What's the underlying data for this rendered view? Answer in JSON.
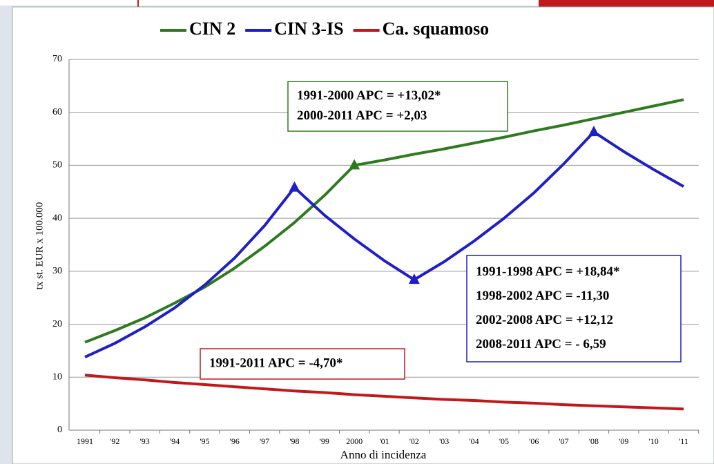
{
  "chart_data": {
    "type": "line",
    "y_label": "tx st. EUR x 100.000",
    "x_label": "Anno di incidenza",
    "categories": [
      "1991",
      "'92",
      "'93",
      "'94",
      "'95",
      "'96",
      "'97",
      "'98",
      "'99",
      "2000",
      "'01",
      "'02",
      "'03",
      "'04",
      "'05",
      "'06",
      "'07",
      "'08",
      "'09",
      "'10",
      "'11"
    ],
    "series": [
      {
        "name": "CIN 2",
        "color": "#2e7a1f",
        "markers": [
          9
        ],
        "values": [
          16.6,
          18.8,
          21.2,
          24,
          27,
          30.6,
          34.7,
          39.2,
          44.3,
          50,
          51,
          52.1,
          53.1,
          54.2,
          55.3,
          56.5,
          57.6,
          58.8,
          60,
          61.2,
          62.4
        ]
      },
      {
        "name": "CIN 3-IS",
        "color": "#1f1fc8",
        "markers": [
          7,
          11,
          17
        ],
        "values": [
          13.8,
          16.4,
          19.5,
          23.1,
          27.4,
          32.5,
          38.6,
          45.8,
          40.6,
          36.1,
          32,
          28.4,
          31.8,
          35.7,
          40,
          44.8,
          50.3,
          56.3,
          52.6,
          49.2,
          46
        ]
      },
      {
        "name": "Ca. squamoso",
        "color": "#c0191b",
        "markers": [],
        "values": [
          10.4,
          9.9,
          9.5,
          9,
          8.6,
          8.2,
          7.8,
          7.4,
          7.1,
          6.7,
          6.4,
          6.1,
          5.8,
          5.6,
          5.3,
          5.1,
          4.8,
          4.6,
          4.4,
          4.2,
          4
        ]
      }
    ],
    "ylim": [
      0,
      70
    ],
    "yticks": [
      0,
      10,
      20,
      30,
      40,
      50,
      60,
      70
    ],
    "grid": true,
    "annotations": [
      {
        "color": "#2e7a1f",
        "lines": [
          "1991-2000 APC = +13,02*",
          "2000-2011 APC = +2,03"
        ]
      },
      {
        "color": "#1f1fc8",
        "lines": [
          "1991-1998 APC = +18,84*",
          "1998-2002 APC = -11,30",
          "2002-2008 APC =  +12,12",
          "2008-2011 APC =  - 6,59"
        ]
      },
      {
        "color": "#c0191b",
        "lines": [
          "1991-2011 APC = -4,70*"
        ]
      }
    ]
  }
}
